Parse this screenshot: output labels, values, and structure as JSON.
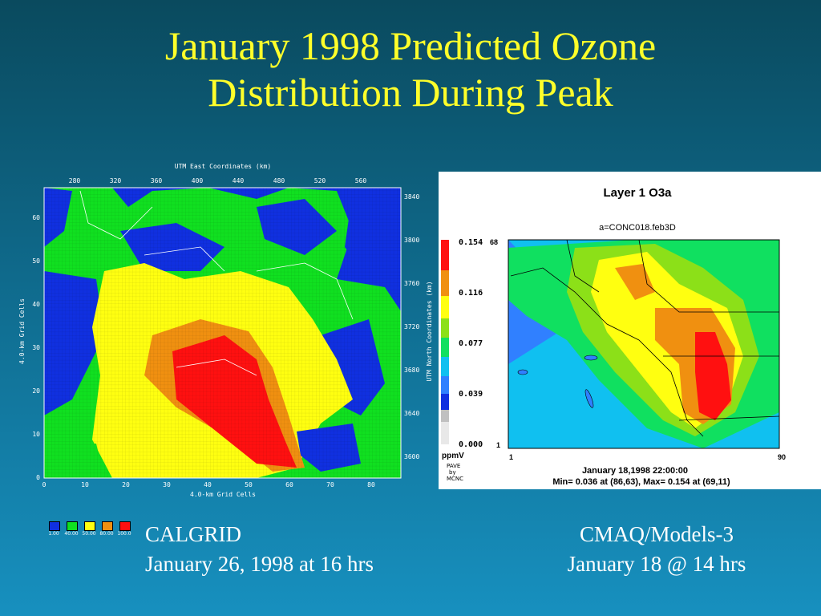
{
  "slide": {
    "title_line1": "January 1998 Predicted Ozone",
    "title_line2": "Distribution During Peak"
  },
  "left_plot": {
    "top_axis_title": "UTM East Coordinates (km)",
    "top_ticks": [
      "280",
      "320",
      "360",
      "400",
      "440",
      "480",
      "520",
      "560"
    ],
    "right_axis_title": "UTM North Coordinates (km)",
    "right_ticks": [
      "3840",
      "3800",
      "3760",
      "3720",
      "3680",
      "3640",
      "3600"
    ],
    "left_axis_title": "4.0-km Grid Cells",
    "left_ticks": [
      "60",
      "50",
      "40",
      "30",
      "20",
      "10",
      "0"
    ],
    "bottom_axis_title": "4.0-km Grid Cells",
    "bottom_ticks": [
      "0",
      "10",
      "20",
      "30",
      "40",
      "50",
      "60",
      "70",
      "80"
    ],
    "legend": [
      {
        "label": "1.00",
        "color": "#1030e0"
      },
      {
        "label": "40.00",
        "color": "#10e020"
      },
      {
        "label": "50.00",
        "color": "#ffff10"
      },
      {
        "label": "80.00",
        "color": "#f09010"
      },
      {
        "label": "100.0",
        "color": "#ff1010"
      }
    ]
  },
  "right_plot": {
    "title": "Layer 1  O3a",
    "subtitle": "a=CONC018.feb3D",
    "scale_labels": [
      "0.154",
      "0.116",
      "0.077",
      "0.039",
      "0.000"
    ],
    "unit": "ppmV",
    "credit_lines": [
      "PAVE",
      "by",
      "MCNC"
    ],
    "axis_top": "68",
    "axis_bottom_left": "1",
    "axis_x_start": "1",
    "axis_x_end": "90",
    "datetime": "January 18,1998 22:00:00",
    "minmax": "Min=   0.036 at (86,63),  Max=   0.154 at (69,11)"
  },
  "captions": {
    "left_line1": "CALGRID",
    "left_line2": "January 26, 1998 at 16 hrs",
    "right_line1": "CMAQ/Models-3",
    "right_line2": "January 18 @ 14 hrs"
  }
}
